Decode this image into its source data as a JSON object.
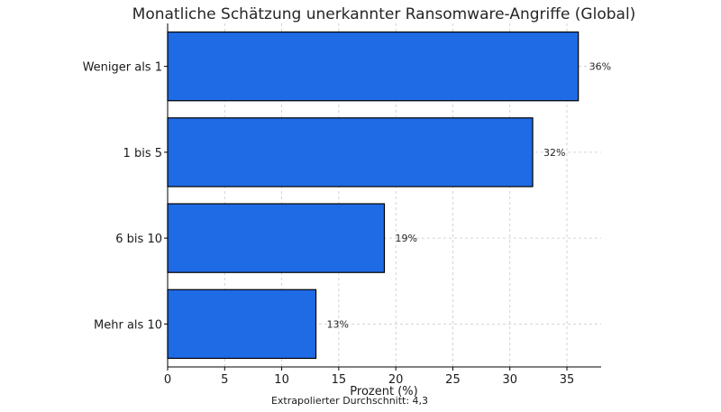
{
  "chart_data": {
    "type": "bar",
    "orientation": "horizontal",
    "title": "Monatliche Schätzung unerkannter Ransomware-Angriffe (Global)",
    "xlabel": "Prozent (%)",
    "ylabel": "",
    "categories": [
      "Weniger als 1",
      "1 bis 5",
      "6 bis 10",
      "Mehr als 10"
    ],
    "values": [
      36,
      32,
      19,
      13
    ],
    "data_labels": [
      "36%",
      "32%",
      "19%",
      "13%"
    ],
    "xlim": [
      0,
      38
    ],
    "xticks": [
      0,
      5,
      10,
      15,
      20,
      25,
      30,
      35
    ],
    "grid": true,
    "bar_color": "#1f6be5",
    "footnote": "Extrapolierter Durchschnitt: 4,3"
  }
}
